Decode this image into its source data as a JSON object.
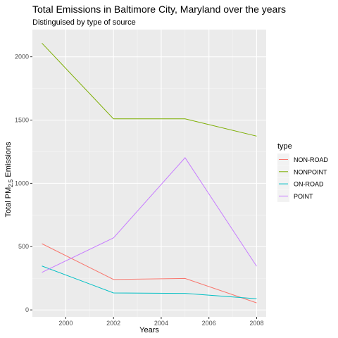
{
  "chart_data": {
    "type": "line",
    "title": "Total Emissions in Baltimore City, Maryland over the years",
    "subtitle": "Distinguised by type of source",
    "xlabel": "Years",
    "ylabel_main": "Total PM",
    "ylabel_sub": "2.5",
    "ylabel_tail": " Emissions",
    "x": [
      1999,
      2002,
      2005,
      2008
    ],
    "xlim": [
      1998.6,
      2008.4
    ],
    "ylim": [
      -55,
      2215
    ],
    "xticks": [
      2000,
      2002,
      2004,
      2006,
      2008
    ],
    "yticks": [
      0,
      500,
      1000,
      1500,
      2000
    ],
    "grid": true,
    "legend_title": "type",
    "legend_position": "right",
    "series": [
      {
        "name": "NON-ROAD",
        "color": "#F8766D",
        "values": [
          522.9,
          240.8,
          248.9,
          55.8
        ]
      },
      {
        "name": "NONPOINT",
        "color": "#7CAE00",
        "values": [
          2107.6,
          1509.5,
          1509.5,
          1373.2
        ]
      },
      {
        "name": "ON-ROAD",
        "color": "#00BFC4",
        "values": [
          346.8,
          134.3,
          130.4,
          88.3
        ]
      },
      {
        "name": "POINT",
        "color": "#C77CFF",
        "values": [
          296.8,
          569.3,
          1202.5,
          344.98
        ]
      }
    ]
  }
}
